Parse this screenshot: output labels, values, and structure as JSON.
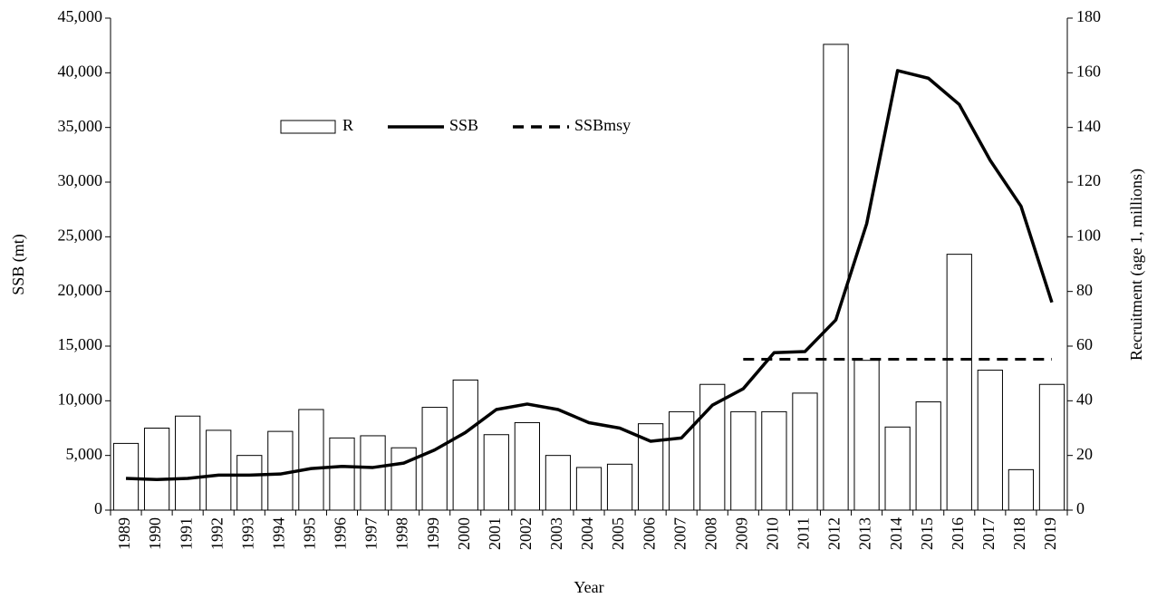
{
  "chart_data": {
    "type": "combo",
    "x_label": "Year",
    "y_label": "SSB (mt)",
    "y2_label": "Recruitment (age 1, millions)",
    "categories": [
      "1989",
      "1990",
      "1991",
      "1992",
      "1993",
      "1994",
      "1995",
      "1996",
      "1997",
      "1998",
      "1999",
      "2000",
      "2001",
      "2002",
      "2003",
      "2004",
      "2005",
      "2006",
      "2007",
      "2008",
      "2009",
      "2010",
      "2011",
      "2012",
      "2013",
      "2014",
      "2015",
      "2016",
      "2017",
      "2018",
      "2019"
    ],
    "series": [
      {
        "name": "R",
        "type": "bar",
        "axis": "y2",
        "color": "#ffffff",
        "edge_color": "#000000",
        "values": [
          24.4,
          30,
          34.4,
          29.2,
          20,
          28.8,
          36.8,
          26.4,
          27.2,
          22.8,
          37.6,
          47.6,
          27.6,
          32,
          20,
          15.6,
          16.8,
          31.6,
          36,
          46,
          36,
          36,
          42.8,
          170.4,
          54.8,
          30.4,
          39.6,
          93.6,
          51.2,
          14.8,
          46
        ]
      },
      {
        "name": "SSB",
        "type": "line",
        "color": "#000000",
        "dashed": false,
        "values": [
          2900,
          2800,
          2900,
          3200,
          3200,
          3300,
          3800,
          4000,
          3900,
          4300,
          5500,
          7100,
          9200,
          9700,
          9200,
          8000,
          7500,
          6300,
          6600,
          9600,
          11100,
          14400,
          14500,
          17400,
          26200,
          40200,
          39500,
          37100,
          32000,
          27800,
          19000
        ]
      },
      {
        "name": "SSBmsy",
        "type": "line",
        "color": "#000000",
        "dashed": true,
        "values": [
          null,
          null,
          null,
          null,
          null,
          null,
          null,
          null,
          null,
          null,
          null,
          null,
          null,
          null,
          null,
          null,
          null,
          null,
          null,
          null,
          13800,
          13800,
          13800,
          13800,
          13800,
          13800,
          13800,
          13800,
          13800,
          13800,
          13800
        ]
      }
    ],
    "ylim": [
      0,
      45000
    ],
    "yticks": [
      0,
      {
        "value": 5000,
        "label": "5,000"
      },
      {
        "value": 10000,
        "label": "10,000"
      },
      {
        "value": 15000,
        "label": "15,000"
      },
      {
        "value": 20000,
        "label": "20,000"
      },
      {
        "value": 25000,
        "label": "25,000"
      },
      {
        "value": 30000,
        "label": "30,000"
      },
      {
        "value": 35000,
        "label": "35,000"
      },
      {
        "value": 40000,
        "label": "40,000"
      },
      {
        "value": 45000,
        "label": "45,000"
      }
    ],
    "y2lim": [
      0,
      180
    ],
    "y2ticks": [
      0,
      20,
      40,
      60,
      80,
      100,
      120,
      140,
      160,
      180
    ],
    "grid": false,
    "legend": "upper-left"
  }
}
